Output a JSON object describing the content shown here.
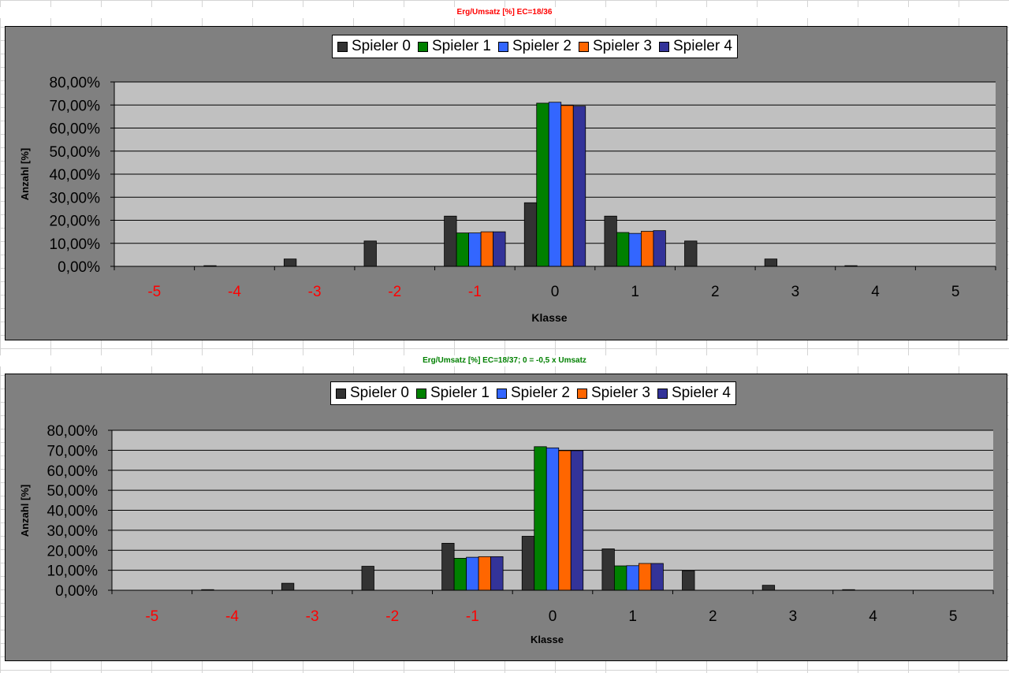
{
  "chart_data": [
    {
      "type": "bar",
      "title": "Erg/Umsatz [%] EC=18/36",
      "title_color": "#ff0000",
      "xlabel": "Klasse",
      "ylabel": "Anzahl [%]",
      "ylim": [
        0,
        80
      ],
      "y_ticks": [
        "0,00%",
        "10,00%",
        "20,00%",
        "30,00%",
        "40,00%",
        "50,00%",
        "60,00%",
        "70,00%",
        "80,00%"
      ],
      "categories": [
        "-5",
        "-4",
        "-3",
        "-2",
        "-1",
        "0",
        "1",
        "2",
        "3",
        "4",
        "5"
      ],
      "category_label_colors": [
        "#ff0000",
        "#ff0000",
        "#ff0000",
        "#ff0000",
        "#ff0000",
        "#000000",
        "#000000",
        "#000000",
        "#000000",
        "#000000",
        "#000000"
      ],
      "grid": true,
      "legend_position": "top-center",
      "series": [
        {
          "name": "Spieler 0",
          "color": "#333333",
          "values": [
            0,
            0.3,
            3.2,
            11.0,
            21.8,
            27.6,
            21.8,
            11.0,
            3.2,
            0.3,
            0
          ]
        },
        {
          "name": "Spieler 1",
          "color": "#008000",
          "values": [
            0,
            0,
            0,
            0,
            14.5,
            70.8,
            14.7,
            0,
            0,
            0,
            0
          ]
        },
        {
          "name": "Spieler 2",
          "color": "#3366ff",
          "values": [
            0,
            0,
            0,
            0,
            14.5,
            71.2,
            14.3,
            0,
            0,
            0,
            0
          ]
        },
        {
          "name": "Spieler 3",
          "color": "#ff6600",
          "values": [
            0,
            0,
            0,
            0,
            15.0,
            69.8,
            15.2,
            0,
            0,
            0,
            0
          ]
        },
        {
          "name": "Spieler 4",
          "color": "#333399",
          "values": [
            0,
            0,
            0,
            0,
            15.0,
            69.5,
            15.5,
            0,
            0,
            0,
            0
          ]
        }
      ]
    },
    {
      "type": "bar",
      "title": "Erg/Umsatz [%] EC=18/37; 0 = -0,5 x Umsatz",
      "title_color": "#008000",
      "xlabel": "Klasse",
      "ylabel": "Anzahl [%]",
      "ylim": [
        0,
        80
      ],
      "y_ticks": [
        "0,00%",
        "10,00%",
        "20,00%",
        "30,00%",
        "40,00%",
        "50,00%",
        "60,00%",
        "70,00%",
        "80,00%"
      ],
      "categories": [
        "-5",
        "-4",
        "-3",
        "-2",
        "-1",
        "0",
        "1",
        "2",
        "3",
        "4",
        "5"
      ],
      "category_label_colors": [
        "#ff0000",
        "#ff0000",
        "#ff0000",
        "#ff0000",
        "#ff0000",
        "#000000",
        "#000000",
        "#000000",
        "#000000",
        "#000000",
        "#000000"
      ],
      "grid": true,
      "legend_position": "top-center",
      "series": [
        {
          "name": "Spieler 0",
          "color": "#333333",
          "values": [
            0,
            0.3,
            3.5,
            12.0,
            23.5,
            27.0,
            20.7,
            9.8,
            2.5,
            0.3,
            0
          ]
        },
        {
          "name": "Spieler 1",
          "color": "#008000",
          "values": [
            0,
            0,
            0,
            0,
            16.0,
            71.8,
            12.2,
            0,
            0,
            0,
            0
          ]
        },
        {
          "name": "Spieler 2",
          "color": "#3366ff",
          "values": [
            0,
            0,
            0,
            0,
            16.5,
            71.2,
            12.3,
            0,
            0,
            0,
            0
          ]
        },
        {
          "name": "Spieler 3",
          "color": "#ff6600",
          "values": [
            0,
            0,
            0,
            0,
            16.8,
            69.8,
            13.4,
            0,
            0,
            0,
            0
          ]
        },
        {
          "name": "Spieler 4",
          "color": "#333399",
          "values": [
            0,
            0,
            0,
            0,
            16.8,
            69.8,
            13.4,
            0,
            0,
            0,
            0
          ]
        }
      ]
    }
  ]
}
